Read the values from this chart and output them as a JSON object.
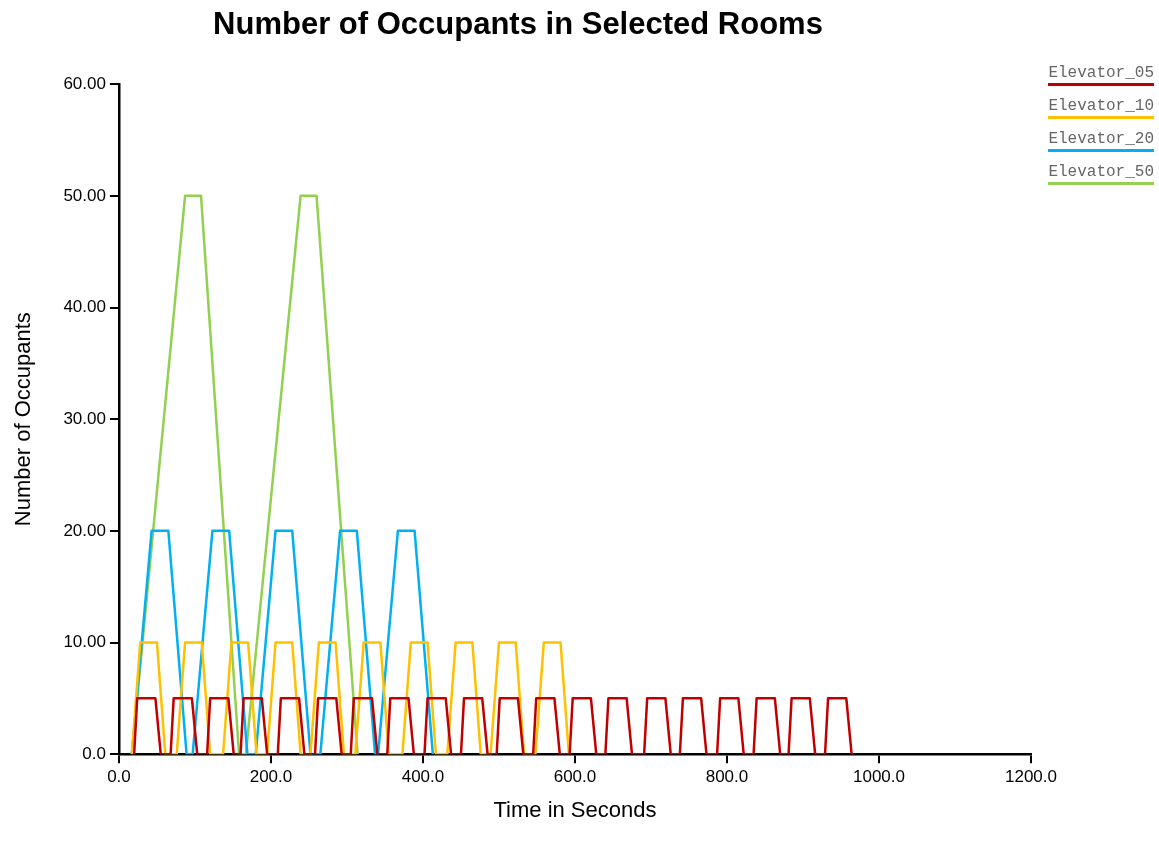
{
  "chart_data": {
    "type": "line",
    "title": "Number of Occupants in Selected Rooms",
    "xlabel": "Time in Seconds",
    "ylabel": "Number of Occupants",
    "xlim": [
      0,
      1200
    ],
    "xticks": [
      {
        "value": 0,
        "label": "0.0"
      },
      {
        "value": 200,
        "label": "200.0"
      },
      {
        "value": 400,
        "label": "400.0"
      },
      {
        "value": 600,
        "label": "600.0"
      },
      {
        "value": 800,
        "label": "800.0"
      },
      {
        "value": 1000,
        "label": "1000.0"
      },
      {
        "value": 1200,
        "label": "1200.0"
      }
    ],
    "ylim": [
      0,
      60
    ],
    "yticks": [
      {
        "value": 0,
        "label": "0.0"
      },
      {
        "value": 10,
        "label": "10.00"
      },
      {
        "value": 20,
        "label": "20.00"
      },
      {
        "value": 30,
        "label": "30.00"
      },
      {
        "value": 40,
        "label": "40.00"
      },
      {
        "value": 50,
        "label": "50.00"
      },
      {
        "value": 60,
        "label": "60.00"
      }
    ],
    "grid": false,
    "legend": "top right",
    "marker": "none",
    "line_style": "solid",
    "series": [
      {
        "name": "Elevator_05",
        "color": "#c00000",
        "x": [
          20,
          24,
          48,
          55,
          68,
          72,
          96,
          103,
          116,
          120,
          144,
          151,
          160,
          164,
          188,
          195,
          209,
          213,
          237,
          244,
          258,
          262,
          286,
          293,
          305,
          309,
          333,
          340,
          353,
          357,
          381,
          388,
          402,
          406,
          430,
          437,
          450,
          454,
          478,
          485,
          497,
          501,
          525,
          532,
          545,
          549,
          573,
          580,
          593,
          597,
          621,
          628,
          640,
          644,
          668,
          675,
          691,
          695,
          719,
          726,
          738,
          742,
          766,
          773,
          787,
          791,
          815,
          822,
          835,
          839,
          863,
          870,
          881,
          885,
          909,
          916,
          929,
          933,
          957,
          964
        ],
        "values": [
          0,
          5,
          5,
          0,
          0,
          5,
          5,
          0,
          0,
          5,
          5,
          0,
          0,
          5,
          5,
          0,
          0,
          5,
          5,
          0,
          0,
          5,
          5,
          0,
          0,
          5,
          5,
          0,
          0,
          5,
          5,
          0,
          0,
          5,
          5,
          0,
          0,
          5,
          5,
          0,
          0,
          5,
          5,
          0,
          0,
          5,
          5,
          0,
          0,
          5,
          5,
          0,
          0,
          5,
          5,
          0,
          0,
          5,
          5,
          0,
          0,
          5,
          5,
          0,
          0,
          5,
          5,
          0,
          0,
          5,
          5,
          0,
          0,
          5,
          5,
          0,
          0,
          5,
          5,
          0
        ]
      },
      {
        "name": "Elevator_10",
        "color": "#ffc000",
        "x": [
          17,
          28,
          50,
          61,
          76,
          87,
          109,
          120,
          137,
          148,
          170,
          181,
          195,
          206,
          228,
          239,
          252,
          263,
          285,
          296,
          311,
          322,
          344,
          355,
          373,
          384,
          406,
          417,
          432,
          443,
          465,
          476,
          489,
          500,
          522,
          533,
          548,
          559,
          581,
          592
        ],
        "values": [
          0,
          10,
          10,
          0,
          0,
          10,
          10,
          0,
          0,
          10,
          10,
          0,
          0,
          10,
          10,
          0,
          0,
          10,
          10,
          0,
          0,
          10,
          10,
          0,
          0,
          10,
          10,
          0,
          0,
          10,
          10,
          0,
          0,
          10,
          10,
          0,
          0,
          10,
          10,
          0
        ]
      },
      {
        "name": "Elevator_20",
        "color": "#00b0f0",
        "x": [
          17,
          43,
          65,
          89,
          97,
          123,
          145,
          169,
          180,
          206,
          228,
          252,
          265,
          291,
          313,
          337,
          341,
          367,
          389,
          413
        ],
        "values": [
          0,
          20,
          20,
          0,
          0,
          20,
          20,
          0,
          0,
          20,
          20,
          0,
          0,
          20,
          20,
          0,
          0,
          20,
          20,
          0
        ]
      },
      {
        "name": "Elevator_50",
        "color": "#92d050",
        "x": [
          17,
          87,
          108,
          158,
          167,
          239,
          260,
          314
        ],
        "values": [
          0,
          50,
          50,
          0,
          0,
          50,
          50,
          0
        ]
      }
    ]
  }
}
